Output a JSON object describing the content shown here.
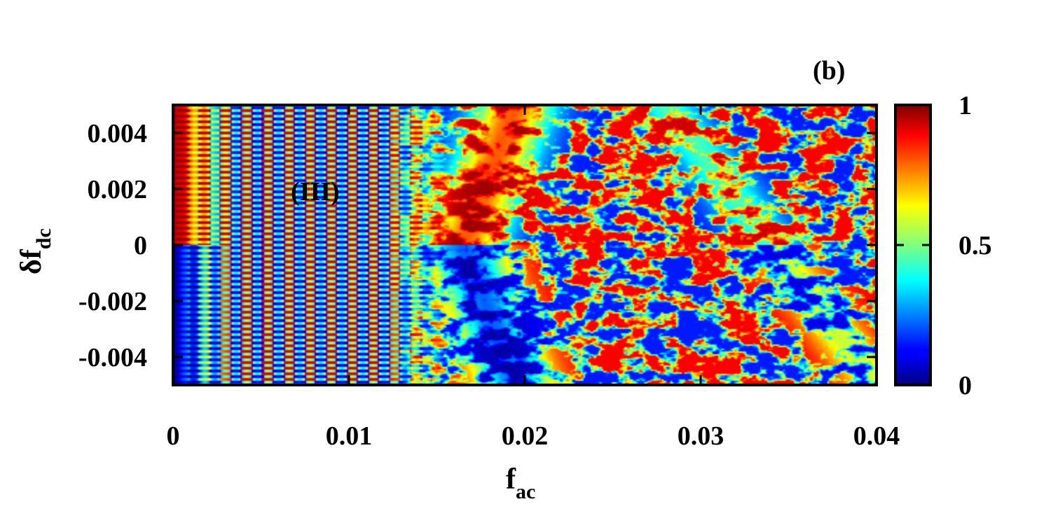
{
  "chart_data": {
    "type": "heatmap",
    "panel_label": "(b)",
    "region_label": "(III)",
    "xlabel": {
      "main": "f",
      "sub": "ac"
    },
    "ylabel": {
      "prefix": "δ",
      "main": "f",
      "sub": "dc"
    },
    "xlim": [
      0,
      0.04
    ],
    "ylim": [
      -0.005,
      0.005
    ],
    "x_ticks": [
      {
        "value": 0,
        "label": "0"
      },
      {
        "value": 0.01,
        "label": "0.01"
      },
      {
        "value": 0.02,
        "label": "0.02"
      },
      {
        "value": 0.03,
        "label": "0.03"
      },
      {
        "value": 0.04,
        "label": "0.04"
      }
    ],
    "y_ticks": [
      {
        "value": 0.004,
        "label": "0.004"
      },
      {
        "value": 0.002,
        "label": "0.002"
      },
      {
        "value": 0,
        "label": "0"
      },
      {
        "value": -0.002,
        "label": "-0.002"
      },
      {
        "value": -0.004,
        "label": "-0.004"
      }
    ],
    "colorbar": {
      "range": [
        0,
        1
      ],
      "colormap": "jet",
      "ticks": [
        {
          "value": 1,
          "label": "1"
        },
        {
          "value": 0.5,
          "label": "0.5"
        },
        {
          "value": 0,
          "label": "0"
        }
      ]
    },
    "description_of_field": {
      "upper_half_low_fac": 1,
      "lower_half_low_fac": 0,
      "regular_lattice_region_fac": [
        0.003,
        0.014
      ],
      "chaotic_region_fac": [
        0.014,
        0.04
      ]
    }
  }
}
